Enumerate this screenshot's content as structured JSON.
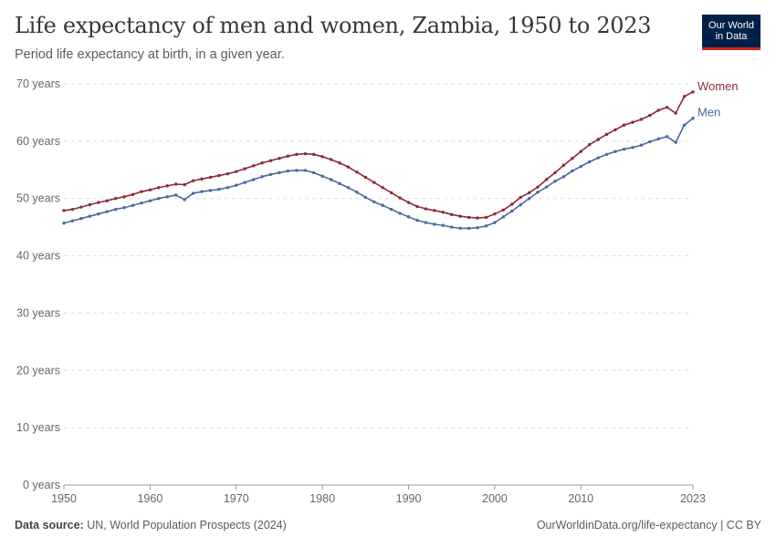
{
  "header": {
    "title": "Life expectancy of men and women, Zambia, 1950 to 2023",
    "subtitle": "Period life expectancy at birth, in a given year."
  },
  "logo": {
    "line1": "Our World",
    "line2": "in Data",
    "bg": "#002147",
    "accent": "#ce261e"
  },
  "footer": {
    "source_label": "Data source:",
    "source_text": "UN, World Population Prospects (2024)",
    "right_text": "OurWorldinData.org/life-expectancy | CC BY"
  },
  "chart_data": {
    "type": "line",
    "title": "Life expectancy of men and women, Zambia, 1950 to 2023",
    "xlabel": "",
    "ylabel": "",
    "xlim": [
      1950,
      2023
    ],
    "ylim": [
      0,
      70
    ],
    "grid": "horizontal dashed",
    "legend": "inline labels at line ends",
    "x_ticks": [
      {
        "value": 1950,
        "label": "1950"
      },
      {
        "value": 1960,
        "label": "1960"
      },
      {
        "value": 1970,
        "label": "1970"
      },
      {
        "value": 1980,
        "label": "1980"
      },
      {
        "value": 1990,
        "label": "1990"
      },
      {
        "value": 2000,
        "label": "2000"
      },
      {
        "value": 2010,
        "label": "2010"
      },
      {
        "value": 2023,
        "label": "2023"
      }
    ],
    "y_ticks": [
      {
        "value": 0,
        "label": "0 years"
      },
      {
        "value": 10,
        "label": "10 years"
      },
      {
        "value": 20,
        "label": "20 years"
      },
      {
        "value": 30,
        "label": "30 years"
      },
      {
        "value": 40,
        "label": "40 years"
      },
      {
        "value": 50,
        "label": "50 years"
      },
      {
        "value": 60,
        "label": "60 years"
      },
      {
        "value": 70,
        "label": "70 years"
      }
    ],
    "x": [
      1950,
      1951,
      1952,
      1953,
      1954,
      1955,
      1956,
      1957,
      1958,
      1959,
      1960,
      1961,
      1962,
      1963,
      1964,
      1965,
      1966,
      1967,
      1968,
      1969,
      1970,
      1971,
      1972,
      1973,
      1974,
      1975,
      1976,
      1977,
      1978,
      1979,
      1980,
      1981,
      1982,
      1983,
      1984,
      1985,
      1986,
      1987,
      1988,
      1989,
      1990,
      1991,
      1992,
      1993,
      1994,
      1995,
      1996,
      1997,
      1998,
      1999,
      2000,
      2001,
      2002,
      2003,
      2004,
      2005,
      2006,
      2007,
      2008,
      2009,
      2010,
      2011,
      2012,
      2013,
      2014,
      2015,
      2016,
      2017,
      2018,
      2019,
      2020,
      2021,
      2022,
      2023
    ],
    "series": [
      {
        "name": "Women",
        "color": "#8c2a3a",
        "values": [
          47.9,
          48.1,
          48.5,
          48.9,
          49.3,
          49.6,
          50.0,
          50.3,
          50.7,
          51.2,
          51.5,
          51.9,
          52.2,
          52.5,
          52.4,
          53.1,
          53.4,
          53.7,
          54.0,
          54.3,
          54.7,
          55.2,
          55.7,
          56.2,
          56.6,
          57.0,
          57.4,
          57.7,
          57.8,
          57.7,
          57.3,
          56.8,
          56.2,
          55.5,
          54.6,
          53.7,
          52.8,
          51.9,
          51.0,
          50.1,
          49.3,
          48.6,
          48.2,
          47.9,
          47.6,
          47.2,
          46.9,
          46.7,
          46.6,
          46.7,
          47.3,
          48.0,
          49.0,
          50.2,
          51.0,
          52.0,
          53.3,
          54.5,
          55.8,
          57.0,
          58.2,
          59.4,
          60.3,
          61.2,
          62.0,
          62.8,
          63.3,
          63.8,
          64.5,
          65.4,
          65.9,
          64.9,
          67.8,
          68.6
        ]
      },
      {
        "name": "Men",
        "color": "#4c6a9c",
        "values": [
          45.7,
          46.1,
          46.5,
          46.9,
          47.3,
          47.7,
          48.1,
          48.4,
          48.8,
          49.2,
          49.6,
          50.0,
          50.3,
          50.6,
          49.8,
          50.9,
          51.2,
          51.4,
          51.6,
          51.9,
          52.3,
          52.8,
          53.3,
          53.8,
          54.2,
          54.5,
          54.8,
          54.9,
          54.9,
          54.5,
          53.9,
          53.3,
          52.6,
          51.9,
          51.1,
          50.2,
          49.4,
          48.8,
          48.1,
          47.4,
          46.8,
          46.2,
          45.8,
          45.5,
          45.3,
          45.0,
          44.8,
          44.8,
          44.9,
          45.2,
          45.8,
          46.8,
          47.8,
          48.9,
          50.0,
          51.1,
          52.0,
          53.0,
          53.8,
          54.8,
          55.6,
          56.4,
          57.1,
          57.7,
          58.2,
          58.6,
          58.9,
          59.3,
          59.9,
          60.4,
          60.8,
          59.8,
          62.8,
          64.0
        ]
      }
    ]
  }
}
